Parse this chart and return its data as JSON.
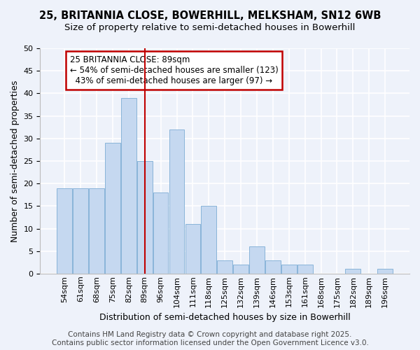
{
  "title_line1": "25, BRITANNIA CLOSE, BOWERHILL, MELKSHAM, SN12 6WB",
  "title_line2": "Size of property relative to semi-detached houses in Bowerhill",
  "xlabel": "Distribution of semi-detached houses by size in Bowerhill",
  "ylabel": "Number of semi-detached properties",
  "categories": [
    "54sqm",
    "61sqm",
    "68sqm",
    "75sqm",
    "82sqm",
    "89sqm",
    "96sqm",
    "104sqm",
    "111sqm",
    "118sqm",
    "125sqm",
    "132sqm",
    "139sqm",
    "146sqm",
    "153sqm",
    "161sqm",
    "168sqm",
    "175sqm",
    "182sqm",
    "189sqm",
    "196sqm"
  ],
  "values": [
    19,
    19,
    19,
    29,
    39,
    25,
    18,
    32,
    11,
    15,
    3,
    2,
    6,
    3,
    2,
    2,
    0,
    0,
    1,
    0,
    1
  ],
  "highlight_index": 5,
  "bar_color": "#c5d8f0",
  "bar_edge_color": "#89b4d9",
  "highlight_line_color": "#c00000",
  "annotation_text": "25 BRITANNIA CLOSE: 89sqm\n← 54% of semi-detached houses are smaller (123)\n  43% of semi-detached houses are larger (97) →",
  "annotation_box_color": "#ffffff",
  "annotation_box_edge_color": "#c00000",
  "ylim": [
    0,
    50
  ],
  "yticks": [
    0,
    5,
    10,
    15,
    20,
    25,
    30,
    35,
    40,
    45,
    50
  ],
  "footer": "Contains HM Land Registry data © Crown copyright and database right 2025.\nContains public sector information licensed under the Open Government Licence v3.0.",
  "background_color": "#eef2fa",
  "grid_color": "#ffffff",
  "title_fontsize": 10.5,
  "subtitle_fontsize": 9.5,
  "axis_label_fontsize": 9,
  "tick_fontsize": 8,
  "annotation_fontsize": 8.5,
  "footer_fontsize": 7.5
}
